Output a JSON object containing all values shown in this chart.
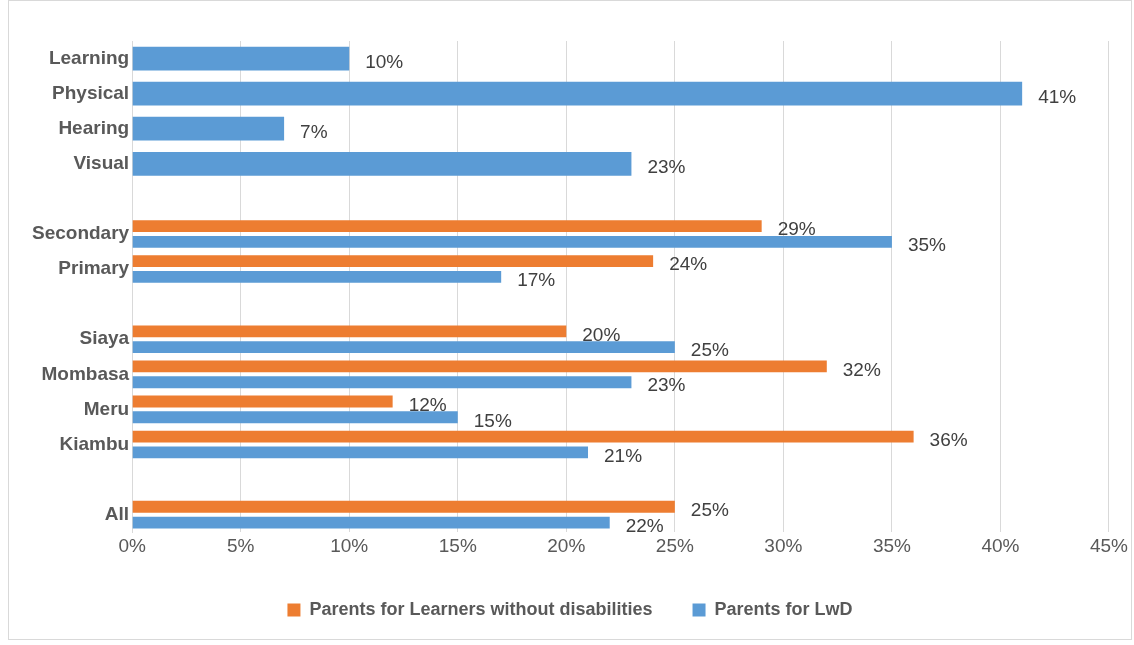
{
  "chart_data": {
    "type": "bar",
    "orientation": "horizontal",
    "categories": [
      "Learning",
      "Physical",
      "Hearing",
      "Visual",
      null,
      "Secondary",
      "Primary",
      null,
      "Siaya",
      "Mombasa",
      "Meru",
      "Kiambu",
      null,
      "All"
    ],
    "series": [
      {
        "name": "Parents for Learners without disabilities",
        "color": "#ed7d31",
        "values": [
          null,
          null,
          null,
          null,
          null,
          29,
          24,
          null,
          20,
          32,
          12,
          36,
          null,
          25
        ],
        "value_labels": [
          null,
          null,
          null,
          null,
          null,
          "29%",
          "24%",
          null,
          "20%",
          "32%",
          "12%",
          "36%",
          null,
          "25%"
        ]
      },
      {
        "name": "Parents for LwD",
        "color": "#5b9bd5",
        "values": [
          10,
          41,
          7,
          23,
          null,
          35,
          17,
          null,
          25,
          23,
          15,
          21,
          null,
          22
        ],
        "value_labels": [
          "10%",
          "41%",
          "7%",
          "23%",
          null,
          "35%",
          "17%",
          null,
          "25%",
          "23%",
          "15%",
          "21%",
          null,
          "22%"
        ]
      }
    ],
    "xlim": [
      0,
      45
    ],
    "xticks": [
      {
        "value": 0,
        "label": "0%"
      },
      {
        "value": 5,
        "label": "5%"
      },
      {
        "value": 10,
        "label": "10%"
      },
      {
        "value": 15,
        "label": "15%"
      },
      {
        "value": 20,
        "label": "20%"
      },
      {
        "value": 25,
        "label": "25%"
      },
      {
        "value": 30,
        "label": "30%"
      },
      {
        "value": 35,
        "label": "35%"
      },
      {
        "value": 40,
        "label": "40%"
      },
      {
        "value": 45,
        "label": "45%"
      }
    ],
    "grid": "x",
    "legend": "bottom"
  }
}
